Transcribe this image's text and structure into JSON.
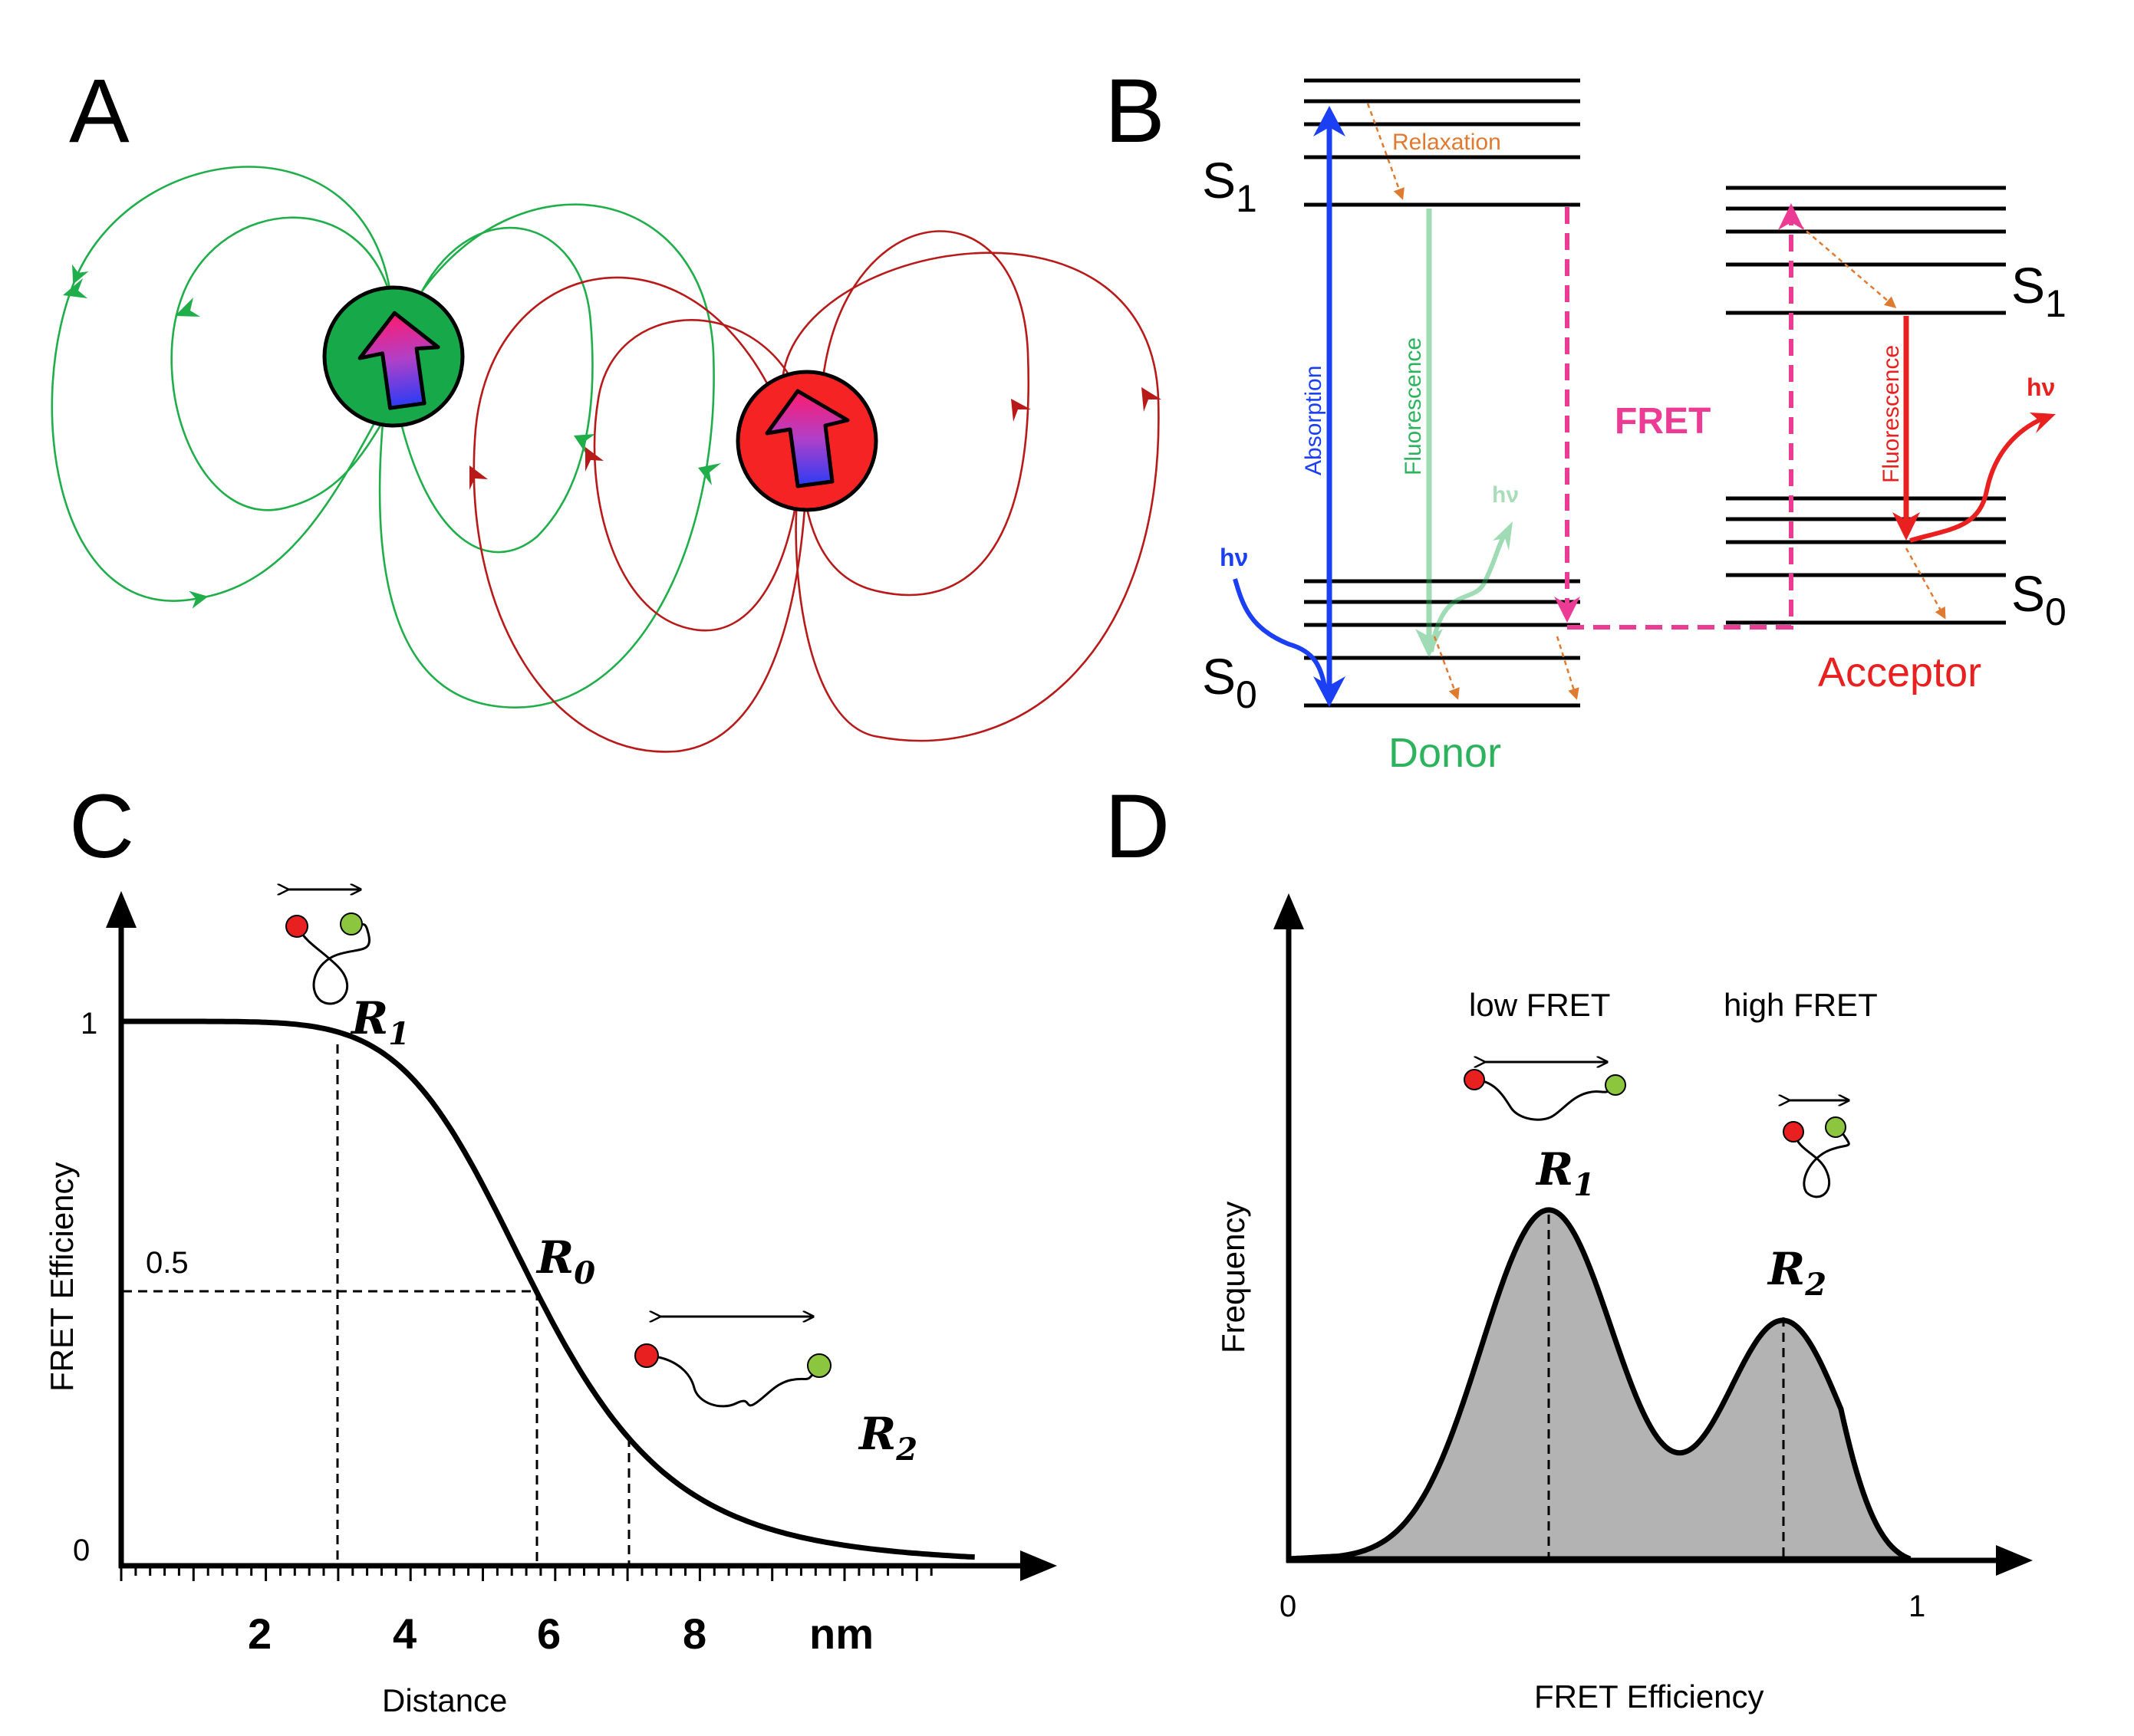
{
  "panels": {
    "a": {
      "letter": "A"
    },
    "b": {
      "letter": "B",
      "donor_label": "Donor",
      "acceptor_label": "Acceptor",
      "fret_label": "FRET",
      "s1": "S",
      "s1_sub": "1",
      "s0": "S",
      "s0_sub": "0",
      "absorption": "Absorption",
      "fluorescence": "Fluorescence",
      "relaxation": "Relaxation",
      "hv": "hν",
      "colors": {
        "donor": "#2db35d",
        "acceptor": "#e8201f",
        "fret": "#ec3b94",
        "absorption": "#1b3ff2",
        "relaxation": "#e07a30"
      }
    },
    "c": {
      "letter": "C",
      "y_axis_label": "FRET Efficiency",
      "x_axis_label": "Distance",
      "x_unit": "nm",
      "x_ticks": [
        "2",
        "4",
        "6",
        "8"
      ],
      "y_tick_1": "1",
      "y_tick_0": "0",
      "half_label": "0.5",
      "r0": "R",
      "r0_sub": "0",
      "r1": "R",
      "r1_sub": "1",
      "r2": "R",
      "r2_sub": "2"
    },
    "d": {
      "letter": "D",
      "y_axis_label": "Frequency",
      "x_axis_label": "FRET Efficiency",
      "x_tick_0": "0",
      "x_tick_1": "1",
      "low_fret": "low FRET",
      "high_fret": "high FRET",
      "r1": "R",
      "r1_sub": "1",
      "r2": "R",
      "r2_sub": "2"
    }
  }
}
